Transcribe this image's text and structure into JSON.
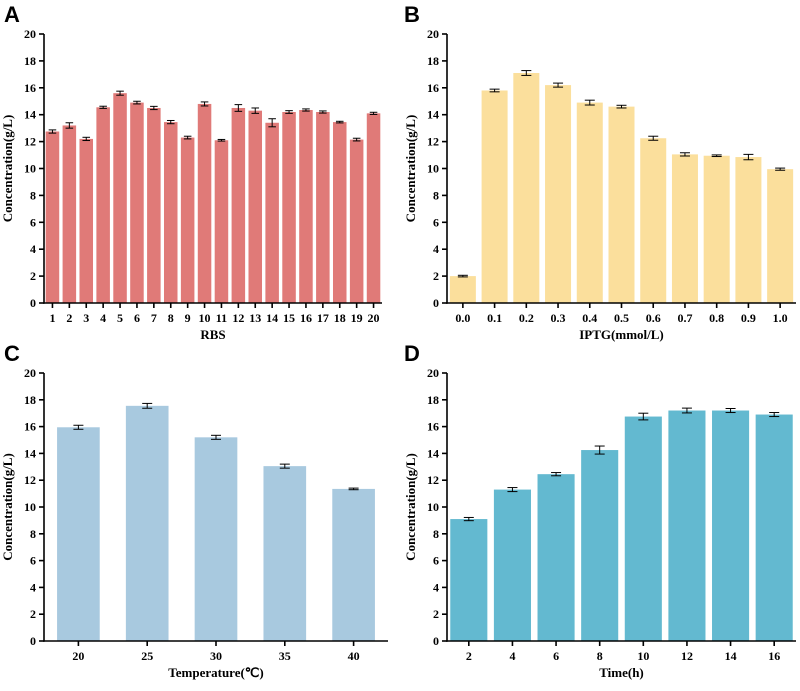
{
  "chart_data": [
    {
      "panel": "A",
      "type": "bar",
      "categories": [
        "1",
        "2",
        "3",
        "4",
        "5",
        "6",
        "7",
        "8",
        "9",
        "10",
        "11",
        "12",
        "13",
        "14",
        "15",
        "16",
        "17",
        "18",
        "19",
        "20"
      ],
      "values": [
        12.75,
        13.2,
        12.2,
        14.55,
        15.6,
        14.9,
        14.5,
        13.45,
        12.3,
        14.8,
        12.1,
        14.5,
        14.3,
        13.4,
        14.2,
        14.35,
        14.2,
        13.45,
        12.15,
        14.1
      ],
      "errors": [
        0.12,
        0.2,
        0.12,
        0.08,
        0.15,
        0.1,
        0.12,
        0.12,
        0.1,
        0.15,
        0.06,
        0.25,
        0.2,
        0.3,
        0.1,
        0.08,
        0.08,
        0.06,
        0.1,
        0.08
      ],
      "xlabel": "RBS",
      "ylabel": "Concentration(g/L)",
      "ylim": [
        0,
        20
      ],
      "yticks": [
        "0",
        "2",
        "4",
        "6",
        "8",
        "10",
        "12",
        "14",
        "16",
        "18",
        "20"
      ],
      "color": "#e07a78"
    },
    {
      "panel": "B",
      "type": "bar",
      "categories": [
        "0.0",
        "0.1",
        "0.2",
        "0.3",
        "0.4",
        "0.5",
        "0.6",
        "0.7",
        "0.8",
        "0.9",
        "1.0"
      ],
      "values": [
        2.0,
        15.8,
        17.1,
        16.2,
        14.9,
        14.6,
        12.25,
        11.05,
        10.95,
        10.85,
        9.95
      ],
      "errors": [
        0.06,
        0.1,
        0.18,
        0.15,
        0.18,
        0.1,
        0.15,
        0.12,
        0.06,
        0.2,
        0.08
      ],
      "xlabel": "IPTG(mmol/L)",
      "ylabel": "Concentration(g/L)",
      "ylim": [
        0,
        20
      ],
      "yticks": [
        "0",
        "2",
        "4",
        "6",
        "8",
        "10",
        "12",
        "14",
        "16",
        "18",
        "20"
      ],
      "color": "#fbdf9c"
    },
    {
      "panel": "C",
      "type": "bar",
      "categories": [
        "20",
        "25",
        "30",
        "35",
        "40"
      ],
      "values": [
        15.95,
        17.55,
        15.2,
        13.05,
        11.35
      ],
      "errors": [
        0.15,
        0.18,
        0.15,
        0.15,
        0.06
      ],
      "xlabel": "Temperature(℃)",
      "ylabel": "Concentration(g/L)",
      "ylim": [
        0,
        20
      ],
      "yticks": [
        "0",
        "2",
        "4",
        "6",
        "8",
        "10",
        "12",
        "14",
        "16",
        "18",
        "20"
      ],
      "color": "#a8c9df"
    },
    {
      "panel": "D",
      "type": "bar",
      "categories": [
        "2",
        "4",
        "6",
        "8",
        "10",
        "12",
        "14",
        "16"
      ],
      "values": [
        9.1,
        11.3,
        12.45,
        14.25,
        16.75,
        17.2,
        17.2,
        16.9
      ],
      "errors": [
        0.12,
        0.15,
        0.12,
        0.3,
        0.25,
        0.18,
        0.15,
        0.15
      ],
      "xlabel": "Time(h)",
      "ylabel": "Concentration(g/L)",
      "ylim": [
        0,
        20
      ],
      "yticks": [
        "0",
        "2",
        "4",
        "6",
        "8",
        "10",
        "12",
        "14",
        "16",
        "18",
        "20"
      ],
      "color": "#63b9d0"
    }
  ]
}
